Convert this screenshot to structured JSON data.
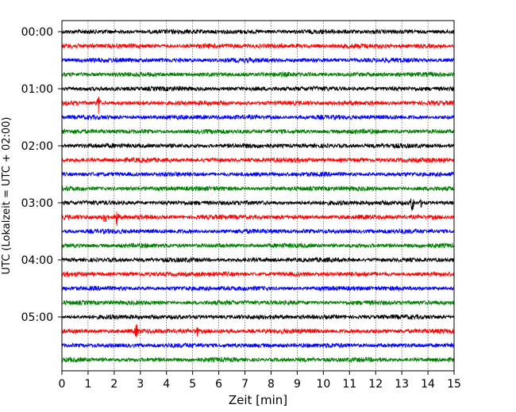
{
  "chart_data": {
    "type": "line",
    "subtype": "helicorder",
    "xlabel": "Zeit  [min]",
    "ylabel": "UTC (Lokalzeit = UTC + 02:00)",
    "xlim": [
      0,
      15
    ],
    "x_ticks": [
      0,
      1,
      2,
      3,
      4,
      5,
      6,
      7,
      8,
      9,
      10,
      11,
      12,
      13,
      14,
      15
    ],
    "x_gridlines": "dotted at each minute",
    "trace_interval_min": 15,
    "trace_color_cycle": [
      "#000000",
      "#ff0000",
      "#0000ff",
      "#008000"
    ],
    "y_ticks": [
      {
        "label": "00:00",
        "trace": 0
      },
      {
        "label": "01:00",
        "trace": 4
      },
      {
        "label": "02:00",
        "trace": 8
      },
      {
        "label": "03:00",
        "trace": 12
      },
      {
        "label": "04:00",
        "trace": 16
      },
      {
        "label": "05:00",
        "trace": 20
      }
    ],
    "trace_count": 24,
    "events": [
      {
        "trace": 5,
        "minute": 1.4,
        "amplitude": 1.0,
        "note": "spike"
      },
      {
        "trace": 12,
        "minute": 13.4,
        "amplitude": 1.1,
        "note": "spike"
      },
      {
        "trace": 12,
        "minute": 13.75,
        "amplitude": 0.4,
        "note": "spike"
      },
      {
        "trace": 13,
        "minute": 1.65,
        "amplitude": 0.9,
        "note": "burst"
      },
      {
        "trace": 13,
        "minute": 2.1,
        "amplitude": 0.8,
        "note": "burst"
      },
      {
        "trace": 21,
        "minute": 2.85,
        "amplitude": 0.7,
        "note": "burst"
      },
      {
        "trace": 21,
        "minute": 5.15,
        "amplitude": 0.6,
        "note": "burst"
      }
    ]
  }
}
